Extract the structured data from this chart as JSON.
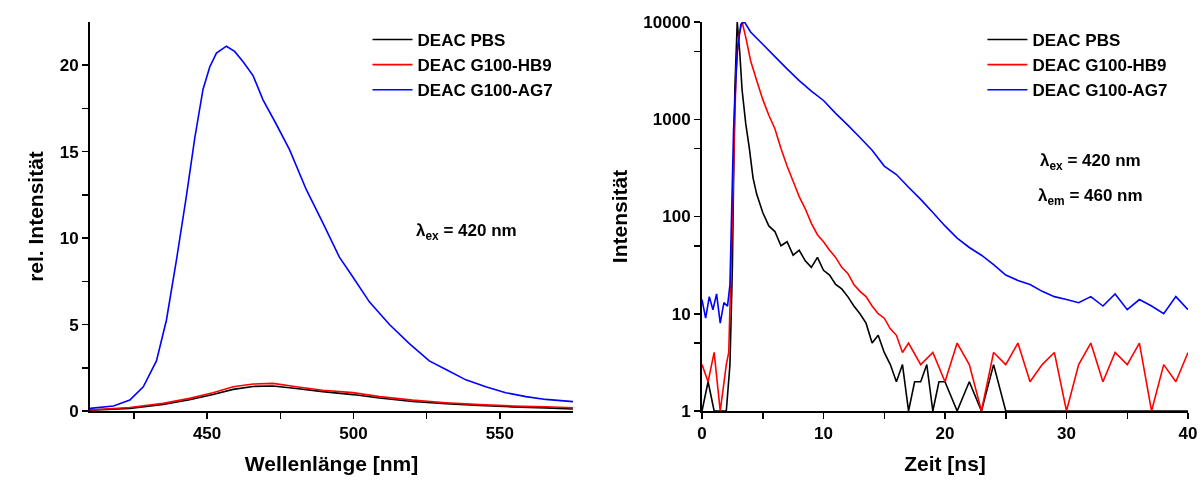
{
  "chart_data": [
    {
      "type": "line",
      "xlabel": "Wellenlänge [nm]",
      "ylabel": "rel. Intensität",
      "xlim": [
        410,
        575
      ],
      "xticks": [
        {
          "value": 425,
          "label": null
        },
        450,
        {
          "value": 475,
          "label": null
        },
        500,
        {
          "value": 525,
          "label": null
        },
        550
      ],
      "ylim": [
        0,
        22.5
      ],
      "yticks": [
        0,
        {
          "value": 2.5,
          "label": null
        },
        5,
        {
          "value": 7.5,
          "label": null
        },
        10,
        {
          "value": 12.5,
          "label": null
        },
        15,
        {
          "value": 17.5,
          "label": null
        },
        20
      ],
      "grid": false,
      "legend": "top right",
      "marker": "none",
      "line_style": "solid",
      "annotations": [
        "λ$_{ex}$ = 420 nm"
      ],
      "series": [
        {
          "name": "DEAC PBS",
          "color": "#000000",
          "x": [
            410,
            423.6,
            435,
            444,
            452,
            458.9,
            465.7,
            472.5,
            480.5,
            489.5,
            499.8,
            508.9,
            520.2,
            531.6,
            543,
            554.3,
            565.7,
            575
          ],
          "values": [
            0.05,
            0.15,
            0.38,
            0.65,
            0.95,
            1.25,
            1.42,
            1.45,
            1.3,
            1.12,
            0.95,
            0.75,
            0.55,
            0.42,
            0.32,
            0.24,
            0.18,
            0.12
          ]
        },
        {
          "name": "DEAC G100-HB9",
          "color": "#ff0000",
          "x": [
            410,
            423.6,
            435,
            444,
            452,
            458.9,
            465.7,
            472.5,
            480.5,
            489.5,
            499.8,
            508.9,
            520.2,
            531.6,
            543,
            554.3,
            565.7,
            575
          ],
          "values": [
            0.06,
            0.2,
            0.44,
            0.73,
            1.06,
            1.4,
            1.56,
            1.6,
            1.4,
            1.2,
            1.06,
            0.83,
            0.63,
            0.48,
            0.37,
            0.29,
            0.25,
            0.19
          ]
        },
        {
          "name": "DEAC G100-AG7",
          "color": "#0000ff",
          "x": [
            410,
            418,
            423.6,
            428.2,
            432.7,
            436.1,
            439.5,
            442.9,
            445.8,
            448.6,
            450.9,
            453.2,
            456.6,
            459.4,
            462.3,
            465.7,
            469.1,
            473.6,
            478.2,
            483.9,
            489.5,
            495.2,
            499.8,
            505.5,
            512.3,
            519.1,
            525.9,
            531.6,
            538.4,
            545.2,
            552,
            558.9,
            565.7,
            575
          ],
          "values": [
            0.15,
            0.29,
            0.63,
            1.4,
            2.9,
            5.25,
            8.7,
            12.4,
            15.8,
            18.6,
            19.9,
            20.7,
            21.1,
            20.8,
            20.2,
            19.4,
            18.0,
            16.6,
            15.1,
            12.8,
            10.9,
            8.9,
            7.75,
            6.3,
            5.0,
            3.9,
            2.9,
            2.4,
            1.8,
            1.4,
            1.06,
            0.83,
            0.67,
            0.54
          ]
        }
      ]
    },
    {
      "type": "line",
      "xlabel": "Zeit [ns]",
      "ylabel": "Intensität",
      "log": "y",
      "xlim": [
        0,
        40
      ],
      "xticks": [
        0,
        {
          "value": 5,
          "label": null
        },
        10,
        {
          "value": 15,
          "label": null
        },
        20,
        {
          "value": 25,
          "label": null
        },
        30,
        {
          "value": 35,
          "label": null
        },
        40
      ],
      "ylim": [
        1,
        10000
      ],
      "yticks": [
        1,
        {
          "value": 5,
          "label": null
        },
        10,
        {
          "value": 50,
          "label": null
        },
        100,
        {
          "value": 500,
          "label": null
        },
        1000,
        {
          "value": 5000,
          "label": null
        },
        10000
      ],
      "grid": false,
      "legend": "top right",
      "marker": "none",
      "line_style": "solid",
      "annotations": [
        "λ$_{ex}$ = 420 nm",
        "λ$_{em}$ = 460 nm"
      ],
      "series": [
        {
          "name": "DEAC PBS",
          "color": "#000000",
          "x": [
            0,
            0.5,
            1,
            1.5,
            2,
            2.3,
            2.5,
            2.7,
            2.9,
            3.1,
            3.3,
            3.6,
            3.9,
            4.2,
            4.5,
            5,
            5.5,
            6,
            6.5,
            7,
            7.5,
            8,
            8.5,
            9,
            9.5,
            10,
            10.5,
            11,
            11.5,
            12,
            12.5,
            13,
            13.5,
            14,
            14.5,
            15,
            15.5,
            16,
            16.5,
            17,
            17.5,
            18,
            18.5,
            19,
            19.5,
            20,
            21,
            22,
            23,
            24,
            25,
            27,
            30,
            33,
            36,
            40
          ],
          "values": [
            1,
            2,
            1,
            1,
            1,
            3,
            30,
            2000,
            10000,
            5000,
            2000,
            900,
            500,
            250,
            170,
            110,
            80,
            70,
            50,
            55,
            40,
            45,
            35,
            30,
            38,
            28,
            25,
            20,
            18,
            15,
            12,
            10,
            8,
            5,
            6,
            4,
            3,
            2,
            3,
            1,
            2,
            2,
            3,
            1,
            2,
            2,
            1,
            2,
            1,
            3,
            1,
            1,
            1,
            1,
            1,
            1
          ]
        },
        {
          "name": "DEAC G100-HB9",
          "color": "#ff0000",
          "x": [
            0,
            0.5,
            1,
            1.5,
            2,
            2.2,
            2.5,
            2.8,
            3.0,
            3.3,
            3.6,
            4,
            4.5,
            5,
            5.5,
            6,
            6.5,
            7,
            7.5,
            8,
            8.5,
            9,
            9.5,
            10,
            10.5,
            11,
            11.5,
            12,
            12.5,
            13,
            13.5,
            14,
            14.5,
            15,
            15.5,
            16,
            16.5,
            17,
            18,
            19,
            20,
            21,
            22,
            23,
            24,
            25,
            26,
            27,
            28,
            29,
            30,
            31,
            32,
            33,
            34,
            35,
            36,
            37,
            38,
            39,
            40
          ],
          "values": [
            3,
            2,
            4,
            1,
            3,
            4,
            100,
            3000,
            7000,
            10000,
            7000,
            4000,
            2500,
            1600,
            1100,
            800,
            500,
            330,
            230,
            160,
            120,
            85,
            65,
            55,
            45,
            38,
            30,
            26,
            20,
            17,
            15,
            12,
            10,
            9,
            7,
            6,
            4,
            5,
            3,
            4,
            2,
            5,
            3,
            1,
            4,
            3,
            5,
            2,
            3,
            4,
            1,
            3,
            5,
            2,
            4,
            3,
            5,
            1,
            3,
            2,
            4
          ]
        },
        {
          "name": "DEAC G100-AG7",
          "color": "#0000ff",
          "x": [
            0,
            0.3,
            0.6,
            0.9,
            1.2,
            1.5,
            1.8,
            2.1,
            2.3,
            2.6,
            2.9,
            3.2,
            3.5,
            4,
            5,
            6,
            7,
            8,
            9,
            10,
            11,
            12,
            13,
            14,
            15,
            16,
            17,
            18,
            19,
            20,
            21,
            22,
            23,
            24,
            25,
            26,
            27,
            28,
            29,
            30,
            31,
            32,
            33,
            34,
            35,
            36,
            37,
            38,
            39,
            40
          ],
          "values": [
            14,
            9,
            15,
            11,
            16,
            8,
            13,
            12,
            20,
            800,
            5000,
            9500,
            10000,
            7900,
            5900,
            4400,
            3300,
            2500,
            1950,
            1560,
            1150,
            870,
            650,
            480,
            330,
            270,
            200,
            150,
            110,
            80,
            60,
            48,
            40,
            32,
            25,
            22,
            20,
            17,
            15,
            14,
            13,
            15,
            12,
            16,
            11,
            14,
            12,
            10,
            15,
            11
          ]
        }
      ]
    }
  ]
}
